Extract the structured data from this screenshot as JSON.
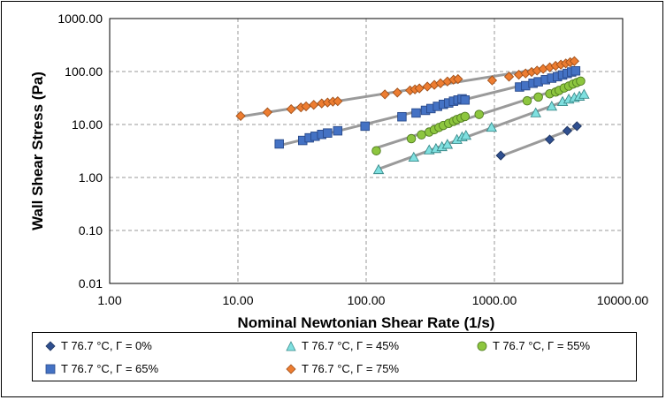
{
  "chart_data": {
    "type": "scatter",
    "title": "",
    "xlabel": "Nominal Newtonian Shear Rate (1/s)",
    "ylabel": "Wall Shear Stress (Pa)",
    "x_scale": "log",
    "y_scale": "log",
    "xlim": [
      1,
      10000
    ],
    "ylim": [
      0.01,
      1000
    ],
    "x_ticks": [
      "1.00",
      "10.00",
      "100.00",
      "1000.00",
      "10000.00"
    ],
    "y_ticks": [
      "0.01",
      "0.10",
      "1.00",
      "10.00",
      "100.00",
      "1000.00"
    ],
    "grid": "dashed",
    "legend_position": "bottom",
    "series": [
      {
        "name": "T  76.7  °C, Γ = 0%",
        "marker": "diamond",
        "color": "#2F4F8F",
        "x": [
          1120,
          2700,
          3700,
          4400
        ],
        "y": [
          2.6,
          5.2,
          7.6,
          9.3
        ]
      },
      {
        "name": "T  76.7  °C, Γ = 45%",
        "marker": "triangle",
        "color": "#7FE0E0",
        "x": [
          125,
          235,
          310,
          350,
          390,
          430,
          510,
          560,
          600,
          950,
          2100,
          2800,
          3400,
          3800,
          4200,
          4600,
          5000
        ],
        "y": [
          1.4,
          2.4,
          3.3,
          3.5,
          3.8,
          4.2,
          5.2,
          5.8,
          6.2,
          8.8,
          16.5,
          22.0,
          27.0,
          30.0,
          32.0,
          34.0,
          37.0
        ]
      },
      {
        "name": "T  76.7  °C, Γ = 55%",
        "marker": "circle",
        "color": "#8DC63F",
        "x": [
          120,
          225,
          270,
          310,
          340,
          370,
          400,
          440,
          480,
          510,
          550,
          590,
          760,
          1800,
          2200,
          2700,
          3000,
          3200,
          3500,
          3800,
          4100,
          4400,
          4700
        ],
        "y": [
          3.2,
          5.4,
          6.4,
          7.2,
          8.0,
          8.8,
          9.6,
          10.5,
          11.5,
          12.4,
          13.3,
          14.2,
          15.5,
          28.0,
          33.0,
          38.0,
          41.0,
          44.0,
          49.0,
          53.0,
          58.0,
          62.0,
          66.0
        ]
      },
      {
        "name": "T  76.7  °C, Γ = 65%",
        "marker": "square",
        "color": "#4472C4",
        "x": [
          21,
          32,
          36,
          40,
          45,
          50,
          60,
          98,
          190,
          245,
          290,
          320,
          360,
          400,
          440,
          480,
          520,
          560,
          590,
          1570,
          1750,
          2000,
          2200,
          2500,
          2800,
          3100,
          3400,
          3700,
          4000,
          4300
        ],
        "y": [
          4.3,
          5.0,
          5.6,
          6.0,
          6.5,
          6.9,
          7.6,
          9.3,
          14.0,
          16.5,
          18.5,
          20.0,
          22.0,
          24.0,
          25.5,
          27.5,
          29.0,
          30.5,
          29.0,
          51.0,
          54.0,
          60.0,
          64.0,
          70.0,
          75.0,
          80.0,
          86.0,
          92.0,
          98.0,
          103.0
        ]
      },
      {
        "name": "T  76.7  °C, Γ = 75%",
        "marker": "diamond",
        "color": "#ED7D31",
        "x": [
          10.5,
          17,
          26,
          31,
          34,
          39,
          45,
          50,
          55,
          60,
          140,
          175,
          220,
          240,
          260,
          300,
          340,
          380,
          430,
          480,
          520,
          960,
          1300,
          1550,
          1750,
          1950,
          2150,
          2400,
          2700,
          3000,
          3300,
          3600,
          3900,
          4200
        ],
        "y": [
          14.5,
          17.0,
          19.5,
          21.0,
          22.0,
          23.5,
          25.0,
          26.0,
          27.0,
          27.5,
          37.0,
          40.0,
          44.0,
          46.0,
          48.0,
          52.0,
          56.0,
          60.0,
          65.0,
          70.0,
          72.0,
          68.0,
          80.0,
          87.0,
          92.0,
          98.0,
          104.0,
          112.0,
          120.0,
          128.0,
          135.0,
          142.0,
          150.0,
          157.0
        ]
      }
    ]
  }
}
